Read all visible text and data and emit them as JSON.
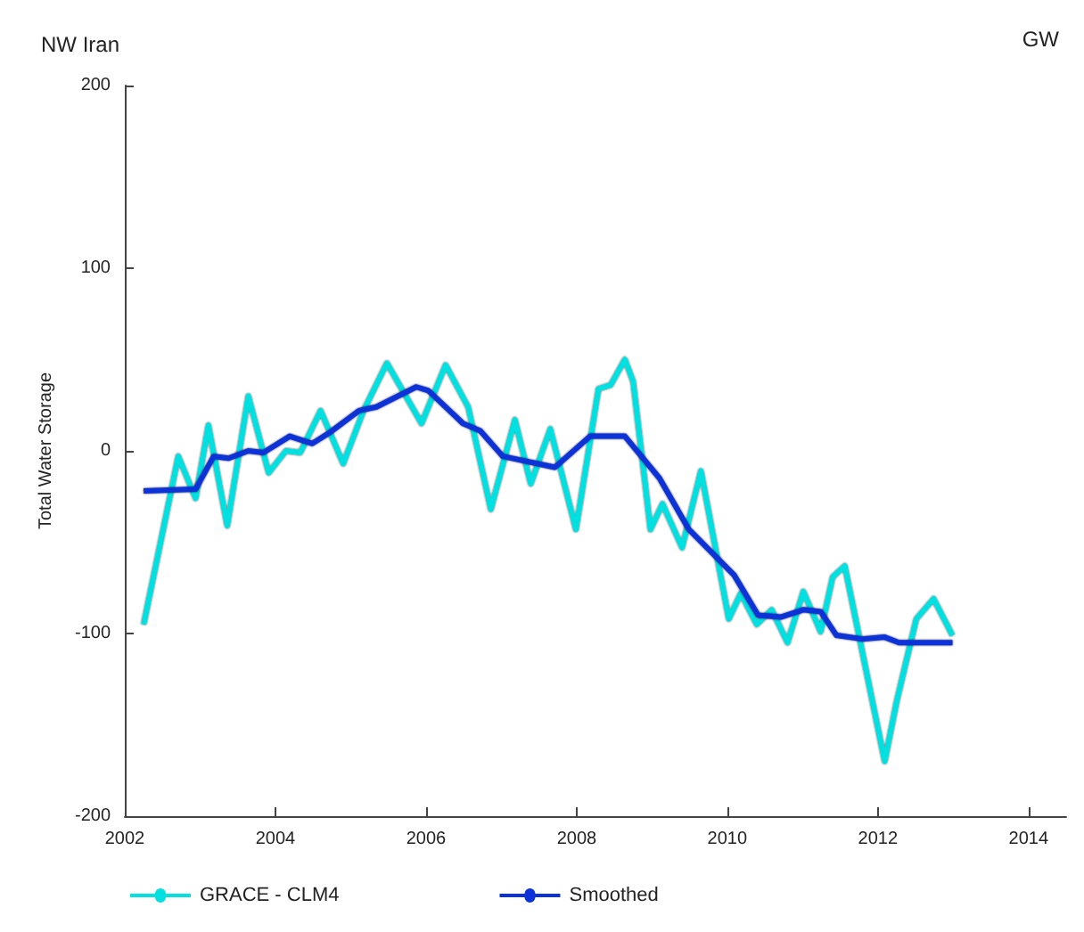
{
  "chart_data": {
    "type": "line",
    "title": "NW Iran",
    "ylabel": "Total Water Storage",
    "annotations": [
      "GW"
    ],
    "xlim": [
      2002,
      2014.5
    ],
    "xticks": [
      2002,
      2004,
      2006,
      2008,
      2010,
      2012,
      2014
    ],
    "ylim": [
      -200,
      200
    ],
    "yticks": [
      -200,
      -100,
      0,
      100,
      200
    ],
    "grid": false,
    "legend": "bottom left",
    "marker": "none",
    "line_style": "solid",
    "series": [
      {
        "name": "GRACE - CLM4",
        "color": "#00e0e0",
        "x": [
          2002.25,
          2002.71,
          2002.94,
          2003.11,
          2003.36,
          2003.64,
          2003.91,
          2004.14,
          2004.33,
          2004.6,
          2004.9,
          2005.17,
          2005.48,
          2005.94,
          2006.26,
          2006.56,
          2006.86,
          2007.18,
          2007.39,
          2007.65,
          2007.99,
          2008.29,
          2008.45,
          2008.64,
          2008.75,
          2008.98,
          2009.14,
          2009.4,
          2009.65,
          2010.02,
          2010.18,
          2010.39,
          2010.59,
          2010.8,
          2011.01,
          2011.24,
          2011.4,
          2011.56,
          2012.09,
          2012.25,
          2012.51,
          2012.74,
          2012.99
        ],
        "values": [
          -95,
          -3,
          -26,
          14,
          -41,
          30,
          -12,
          0,
          -1,
          22,
          -7,
          22,
          48,
          15,
          47,
          24,
          -32,
          17,
          -18,
          12,
          -43,
          34,
          36,
          50,
          38,
          -43,
          -29,
          -53,
          -11,
          -92,
          -78,
          -95,
          -87,
          -105,
          -77,
          -99,
          -69,
          -63,
          -170,
          -137,
          -92,
          -81,
          -101
        ]
      },
      {
        "name": "Smoothed",
        "color": "#0a32d8",
        "x": [
          2002.25,
          2002.94,
          2003.18,
          2003.38,
          2003.64,
          2003.84,
          2004.19,
          2004.49,
          2004.72,
          2005.11,
          2005.34,
          2005.87,
          2006.03,
          2006.49,
          2006.72,
          2007.02,
          2007.71,
          2008.18,
          2008.64,
          2009.1,
          2009.49,
          2010.09,
          2010.41,
          2010.71,
          2011.01,
          2011.24,
          2011.45,
          2011.79,
          2012.09,
          2012.28,
          2012.99
        ],
        "values": [
          -22,
          -21,
          -3,
          -4,
          0,
          -1,
          8,
          4,
          10,
          22,
          24,
          35,
          33,
          15,
          11,
          -3,
          -9,
          8,
          8,
          -15,
          -43,
          -68,
          -90,
          -91,
          -87,
          -88,
          -101,
          -103,
          -102,
          -105,
          -105
        ]
      }
    ]
  }
}
